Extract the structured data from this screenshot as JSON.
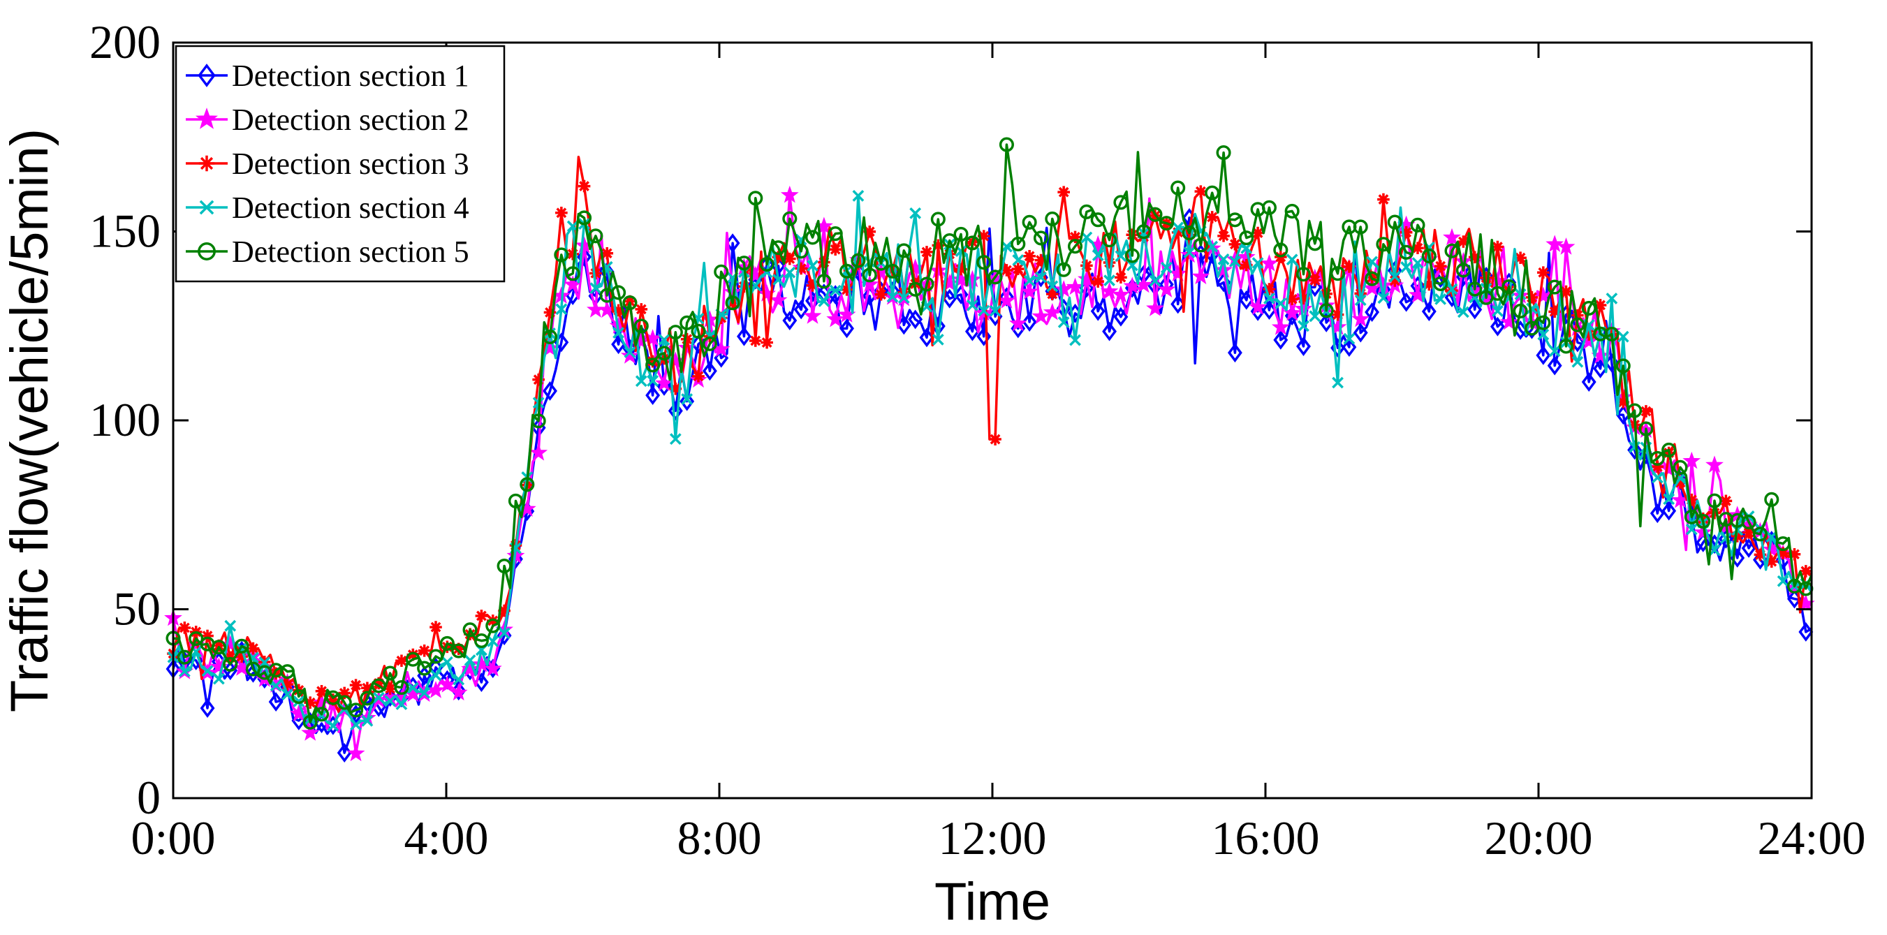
{
  "chart_data": {
    "type": "line",
    "title": "",
    "xlabel": "Time",
    "ylabel": "Traffic flow(vehicle/5min)",
    "xlim": [
      0,
      24
    ],
    "ylim": [
      0,
      200
    ],
    "x_ticks": [
      0,
      4,
      8,
      12,
      16,
      20,
      24
    ],
    "x_tick_labels": [
      "0:00",
      "4:00",
      "8:00",
      "12:00",
      "16:00",
      "20:00",
      "24:00"
    ],
    "y_ticks": [
      0,
      50,
      100,
      150,
      200
    ],
    "y_tick_labels": [
      "0",
      "50",
      "100",
      "150",
      "200"
    ],
    "grid": false,
    "legend_position": "top-left",
    "sampling": "5-minute intervals (288 points per series, approximate reading)",
    "profile_hours": [
      0,
      0.5,
      1.0,
      1.5,
      2.0,
      2.5,
      3.0,
      3.5,
      4.0,
      4.5,
      4.8,
      5.0,
      5.2,
      5.5,
      5.7,
      6.0,
      6.5,
      7.0,
      7.5,
      8.0,
      8.5,
      9.0,
      10.0,
      11.0,
      12.0,
      13.0,
      14.0,
      15.0,
      16.0,
      17.0,
      18.0,
      19.0,
      20.0,
      20.5,
      21.0,
      21.5,
      22.0,
      22.5,
      23.0,
      23.5,
      24.0
    ],
    "series": [
      {
        "name": "Detection section 1",
        "color": "#0000ff",
        "marker": "diamond",
        "profile": [
          36,
          32,
          36,
          28,
          22,
          18,
          24,
          28,
          32,
          33,
          40,
          58,
          78,
          108,
          128,
          140,
          128,
          112,
          110,
          120,
          132,
          135,
          132,
          130,
          129,
          131,
          132,
          138,
          130,
          126,
          136,
          134,
          126,
          120,
          116,
          90,
          80,
          68,
          66,
          62,
          44
        ]
      },
      {
        "name": "Detection section 2",
        "color": "#ff00ff",
        "marker": "star",
        "profile": [
          40,
          36,
          38,
          30,
          24,
          20,
          26,
          30,
          30,
          32,
          42,
          60,
          82,
          118,
          132,
          140,
          130,
          115,
          113,
          124,
          136,
          138,
          134,
          133,
          132,
          134,
          136,
          142,
          134,
          131,
          142,
          138,
          130,
          124,
          120,
          94,
          84,
          74,
          74,
          68,
          50
        ]
      },
      {
        "name": "Detection section 3",
        "color": "#ff0000",
        "marker": "asterisk",
        "profile": [
          42,
          40,
          40,
          34,
          28,
          24,
          30,
          34,
          38,
          44,
          50,
          62,
          84,
          124,
          142,
          148,
          134,
          118,
          116,
          128,
          140,
          146,
          142,
          141,
          140,
          142,
          145,
          152,
          142,
          134,
          144,
          142,
          132,
          126,
          122,
          96,
          88,
          76,
          70,
          66,
          56
        ]
      },
      {
        "name": "Detection section 4",
        "color": "#00bfbf",
        "marker": "cross",
        "profile": [
          38,
          34,
          37,
          30,
          24,
          21,
          26,
          30,
          34,
          36,
          43,
          61,
          84,
          126,
          140,
          146,
          128,
          114,
          114,
          126,
          138,
          141,
          139,
          138,
          137,
          139,
          141,
          148,
          136,
          130,
          140,
          138,
          129,
          123,
          119,
          92,
          82,
          70,
          70,
          64,
          52
        ]
      },
      {
        "name": "Detection section 5",
        "color": "#008000",
        "marker": "circle",
        "profile": [
          40,
          38,
          39,
          33,
          27,
          24,
          29,
          33,
          38,
          42,
          48,
          63,
          86,
          128,
          144,
          150,
          136,
          120,
          118,
          130,
          143,
          147,
          145,
          145,
          144,
          147,
          152,
          155,
          150,
          142,
          146,
          143,
          132,
          127,
          123,
          97,
          86,
          74,
          71,
          67,
          56
        ]
      }
    ],
    "notable_points": [
      {
        "hour": 2.5,
        "series": "Detection section 1",
        "value": 12
      },
      {
        "hour": 6.0,
        "series": "Detection section 3",
        "value": 162
      },
      {
        "hour": 12.0,
        "series": "Detection section 3",
        "value": 95
      },
      {
        "hour": 12.2,
        "series": "Detection section 5",
        "value": 173
      },
      {
        "hour": 14.1,
        "series": "Detection section 5",
        "value": 171
      },
      {
        "hour": 21.5,
        "series": "Detection section 5",
        "value": 72
      },
      {
        "hour": 23.9,
        "series": "Detection section 1",
        "value": 44
      }
    ]
  }
}
